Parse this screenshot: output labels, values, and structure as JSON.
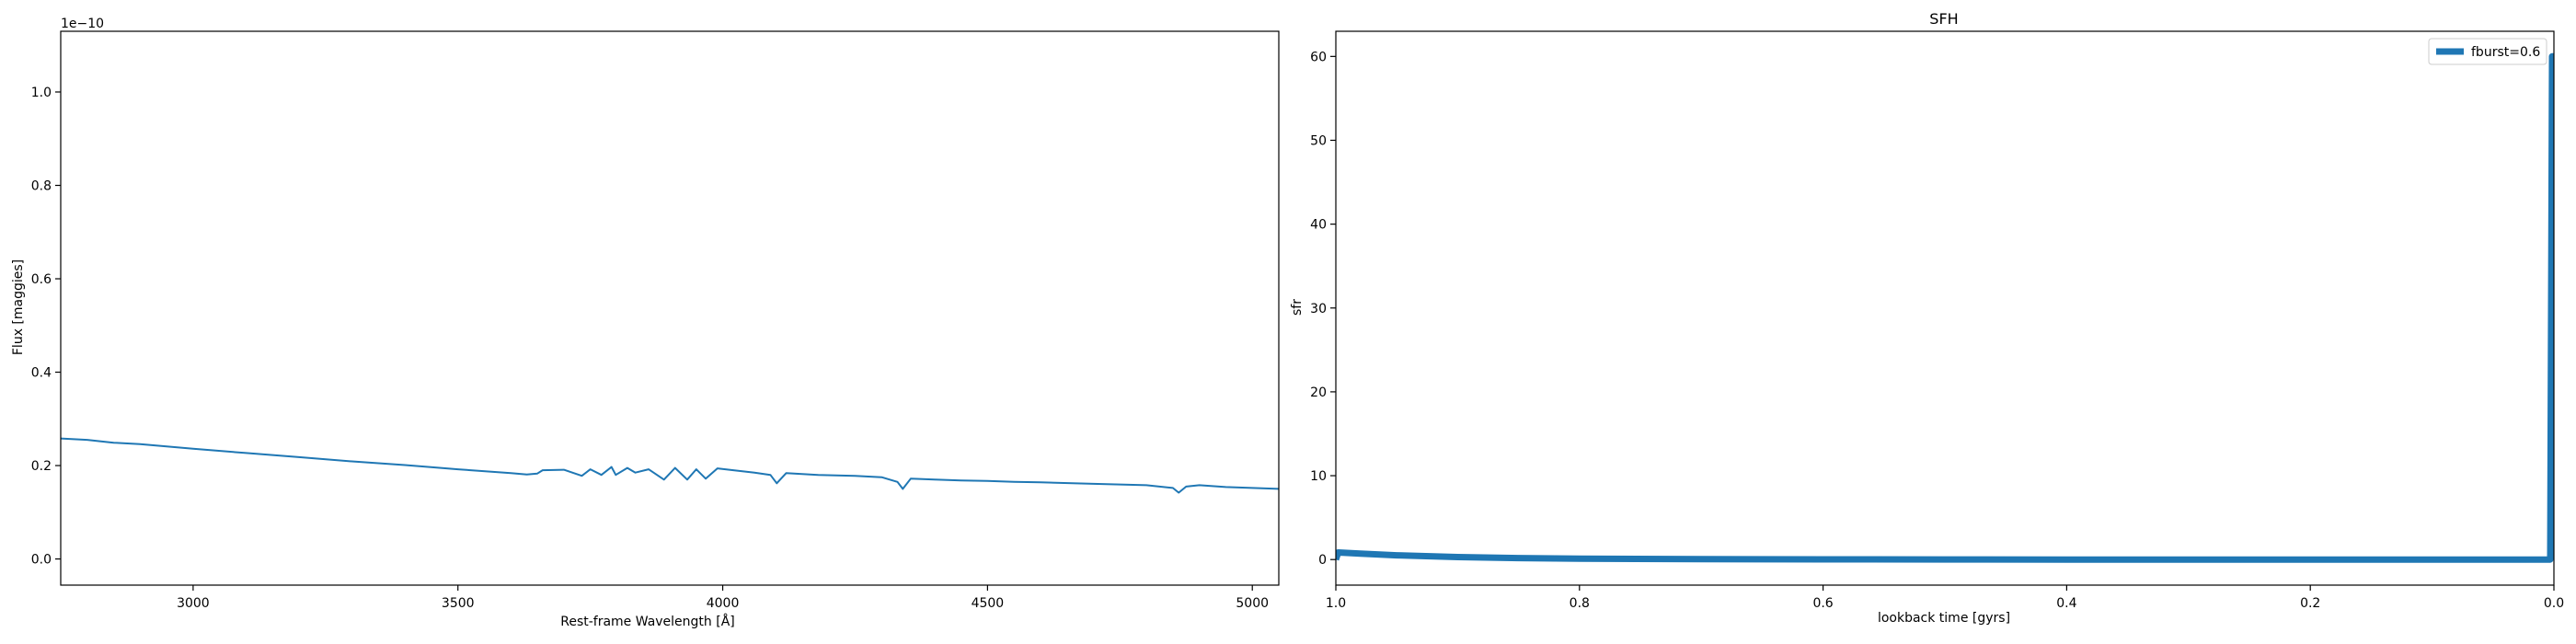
{
  "chart_data": [
    {
      "type": "line",
      "title": "",
      "xlabel": "Rest-frame Wavelength [Å]",
      "ylabel": "Flux [maggies]",
      "offset_text": "1e−10",
      "y_scale_exponent": -10,
      "xlim": [
        2750,
        5050
      ],
      "ylim": [
        -0.056,
        1.13
      ],
      "xticks": [
        3000,
        3500,
        4000,
        4500,
        5000
      ],
      "yticks": [
        0.0,
        0.2,
        0.4,
        0.6,
        0.8,
        1.0
      ],
      "xtick_labels": [
        "3000",
        "3500",
        "4000",
        "4500",
        "5000"
      ],
      "ytick_labels": [
        "0.0",
        "0.2",
        "0.4",
        "0.6",
        "0.8",
        "1.0"
      ],
      "grid": false,
      "series": [
        {
          "color": "#1f77b4",
          "x": [
            2750,
            2800,
            2850,
            2900,
            3000,
            3100,
            3200,
            3300,
            3400,
            3500,
            3600,
            3630,
            3650,
            3660,
            3700,
            3734,
            3750,
            3771,
            3790,
            3798,
            3820,
            3835,
            3860,
            3889,
            3910,
            3933,
            3950,
            3968,
            3990,
            4020,
            4060,
            4090,
            4102,
            4120,
            4180,
            4250,
            4300,
            4330,
            4340,
            4355,
            4400,
            4450,
            4500,
            4550,
            4600,
            4700,
            4800,
            4850,
            4861,
            4875,
            4900,
            4950,
            5000,
            5050
          ],
          "y": [
            0.258,
            0.255,
            0.249,
            0.246,
            0.236,
            0.227,
            0.218,
            0.209,
            0.201,
            0.192,
            0.184,
            0.181,
            0.183,
            0.19,
            0.191,
            0.178,
            0.192,
            0.18,
            0.197,
            0.18,
            0.195,
            0.185,
            0.192,
            0.17,
            0.195,
            0.17,
            0.192,
            0.172,
            0.194,
            0.19,
            0.185,
            0.18,
            0.162,
            0.184,
            0.18,
            0.178,
            0.175,
            0.165,
            0.15,
            0.172,
            0.17,
            0.168,
            0.167,
            0.165,
            0.164,
            0.161,
            0.158,
            0.152,
            0.142,
            0.155,
            0.158,
            0.154,
            0.152,
            0.15
          ]
        }
      ]
    },
    {
      "type": "line",
      "title": "SFH",
      "xlabel": "lookback time [gyrs]",
      "ylabel": "sfr",
      "xlim": [
        1.0,
        0.0
      ],
      "ylim": [
        -3.05,
        63.0
      ],
      "xticks": [
        1.0,
        0.8,
        0.6,
        0.4,
        0.2,
        0.0
      ],
      "yticks": [
        0,
        10,
        20,
        30,
        40,
        50,
        60
      ],
      "xtick_labels": [
        "1.0",
        "0.8",
        "0.6",
        "0.4",
        "0.2",
        "0.0"
      ],
      "ytick_labels": [
        "0",
        "10",
        "20",
        "30",
        "40",
        "50",
        "60"
      ],
      "grid": false,
      "legend_position": "top-right",
      "series": [
        {
          "name": "fburst=0.6",
          "color": "#1f77b4",
          "x": [
            1.0,
            0.998,
            0.98,
            0.95,
            0.9,
            0.85,
            0.8,
            0.7,
            0.6,
            0.5,
            0.4,
            0.3,
            0.2,
            0.1,
            0.003,
            0.0015,
            0.0
          ],
          "y": [
            0.0,
            0.85,
            0.7,
            0.5,
            0.3,
            0.18,
            0.1,
            0.04,
            0.02,
            0.01,
            0.005,
            0.003,
            0.002,
            0.001,
            0.0,
            60.0,
            60.0
          ]
        }
      ]
    }
  ]
}
